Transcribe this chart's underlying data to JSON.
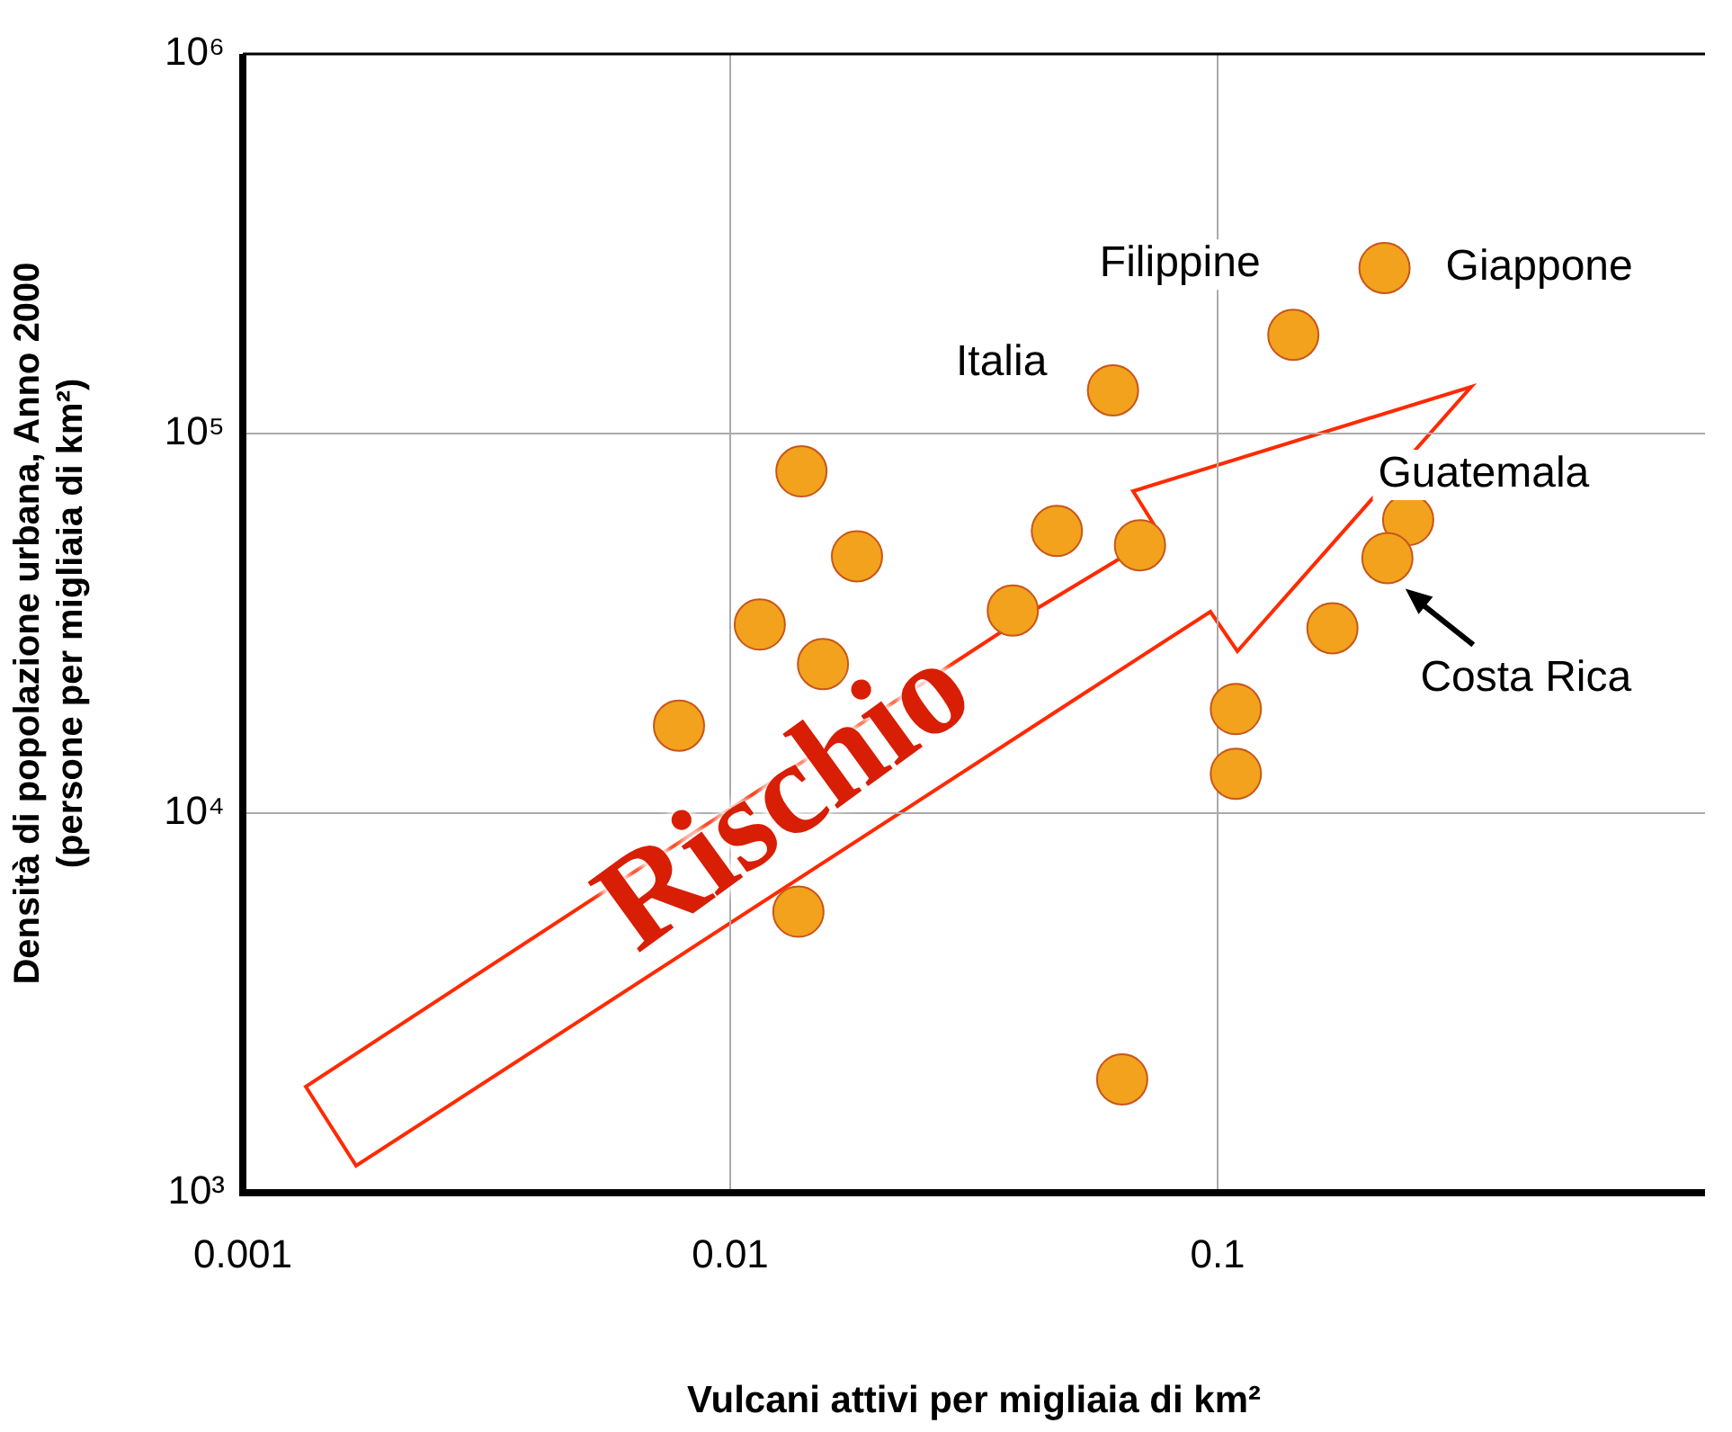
{
  "chart_data": {
    "type": "scatter",
    "xlabel": "Vulcani attivi per migliaia di km²",
    "ylabel": "Densità di popolazione urbana, Anno 2000\n(persone per migliaia di km²)",
    "x": [
      0.22,
      0.143,
      0.061,
      0.014,
      0.0182,
      0.0468,
      0.0693,
      0.0115,
      0.038,
      0.0155,
      0.00785,
      0.0138,
      0.0637,
      0.109,
      0.109,
      0.172,
      0.246,
      0.223
    ],
    "series": [
      {
        "color": "#f2a21c",
        "values": [
          273000,
          182000,
          130000,
          79500,
          47500,
          55400,
          50800,
          31400,
          34200,
          24700,
          17000,
          5500,
          1990,
          18800,
          12700,
          30700,
          59200,
          47000
        ]
      }
    ],
    "xlim": [
      0.001,
      1
    ],
    "ylim": [
      1000,
      1000000
    ],
    "xticks": [
      0.001,
      0.01,
      0.1
    ],
    "yticks": [
      {
        "value": 1000,
        "label": "10³"
      },
      {
        "value": 10000,
        "label": "10⁴"
      },
      {
        "value": 100000,
        "label": "10⁵"
      },
      {
        "value": 1000000,
        "label": "10⁶"
      }
    ],
    "log": "xy",
    "grid": true,
    "legend": false,
    "marker": "circle",
    "annotations": [
      {
        "text": "Giappone",
        "x": 0.22,
        "y": 273000
      },
      {
        "text": "Filippine",
        "x": 0.143,
        "y": 182000
      },
      {
        "text": "Italia",
        "x": 0.061,
        "y": 130000
      },
      {
        "text": "Guatemala",
        "x": 0.246,
        "y": 59200
      },
      {
        "text": "Costa Rica",
        "x": 0.223,
        "y": 47000
      },
      "Rischio"
    ]
  }
}
